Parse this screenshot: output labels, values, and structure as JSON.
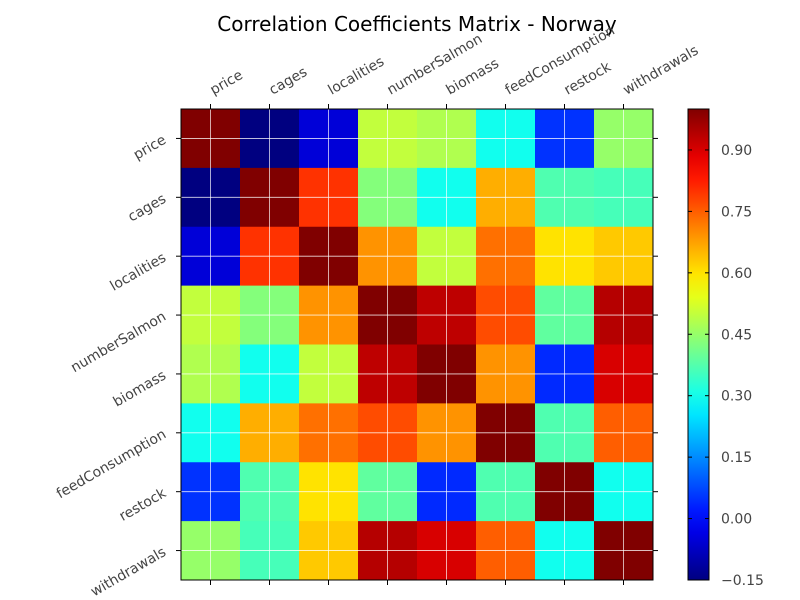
{
  "chart_data": {
    "type": "heatmap",
    "title": "Correlation Coefficients Matrix - Norway",
    "x_labels": [
      "price",
      "cages",
      "localities",
      "numberSalmon",
      "biomass",
      "feedConsumption",
      "restock",
      "withdrawals"
    ],
    "y_labels": [
      "price",
      "cages",
      "localities",
      "numberSalmon",
      "biomass",
      "feedConsumption",
      "restock",
      "withdrawals"
    ],
    "values": [
      [
        1.0,
        -0.15,
        -0.05,
        0.5,
        0.48,
        0.3,
        0.05,
        0.45
      ],
      [
        -0.15,
        1.0,
        0.8,
        0.43,
        0.3,
        0.66,
        0.37,
        0.36
      ],
      [
        -0.05,
        0.8,
        1.0,
        0.69,
        0.5,
        0.73,
        0.6,
        0.63
      ],
      [
        0.5,
        0.43,
        0.69,
        1.0,
        0.93,
        0.77,
        0.39,
        0.94
      ],
      [
        0.48,
        0.3,
        0.5,
        0.93,
        1.0,
        0.69,
        0.04,
        0.9
      ],
      [
        0.3,
        0.66,
        0.73,
        0.77,
        0.69,
        1.0,
        0.37,
        0.75
      ],
      [
        0.05,
        0.37,
        0.6,
        0.39,
        0.04,
        0.37,
        1.0,
        0.3
      ],
      [
        0.45,
        0.36,
        0.63,
        0.94,
        0.9,
        0.75,
        0.3,
        1.0
      ]
    ],
    "vmin": -0.15,
    "vmax": 1.0,
    "colormap": "jet",
    "grid": true,
    "colorbar": {
      "ticks": [
        -0.15,
        0.0,
        0.15,
        0.3,
        0.45,
        0.6,
        0.75,
        0.9
      ],
      "tick_labels": [
        "−0.15",
        "0.00",
        "0.15",
        "0.30",
        "0.45",
        "0.60",
        "0.75",
        "0.90"
      ]
    }
  }
}
